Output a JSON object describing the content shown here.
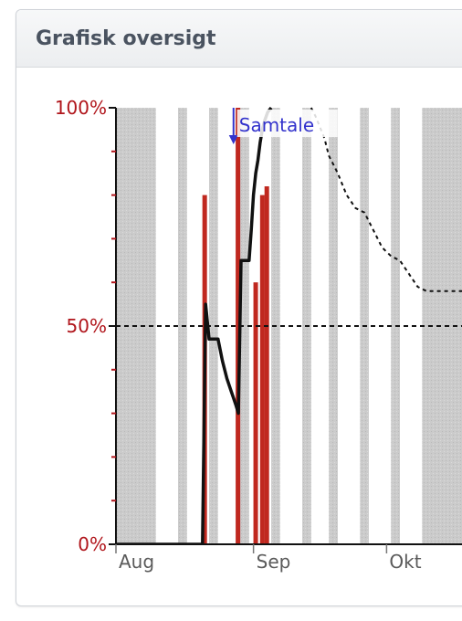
{
  "panel": {
    "title": "Grafisk oversigt"
  },
  "chart_data": {
    "type": "bar",
    "title": "",
    "xlabel": "",
    "ylabel": "",
    "x_unit": "day index from first tick (Aug)",
    "ylim": [
      0,
      100
    ],
    "x_ticks": [
      {
        "label": "Aug",
        "x": 0
      },
      {
        "label": "Sep",
        "x": 31
      },
      {
        "label": "Okt",
        "x": 61
      }
    ],
    "y_ticks": [
      {
        "label": "0%",
        "value": 0
      },
      {
        "label": "50%",
        "value": 50
      },
      {
        "label": "100%",
        "value": 100
      }
    ],
    "xlim": [
      0,
      78
    ],
    "shaded_periods": [
      [
        0,
        9
      ],
      [
        14,
        16
      ],
      [
        21,
        23
      ],
      [
        27,
        30
      ],
      [
        35,
        37
      ],
      [
        42,
        44
      ],
      [
        48,
        50
      ],
      [
        55,
        57
      ],
      [
        62,
        64
      ],
      [
        69,
        78
      ]
    ],
    "bars": [
      {
        "x": 20,
        "value": 80
      },
      {
        "x": 27.5,
        "value": 100
      },
      {
        "x": 31.5,
        "value": 60
      },
      {
        "x": 33,
        "value": 80
      },
      {
        "x": 34,
        "value": 82
      }
    ],
    "series": [
      {
        "style": "solid",
        "x": [
          0,
          19.5,
          20.2,
          21,
          22,
          23,
          24,
          25,
          26,
          27,
          27.6,
          28.2,
          29,
          30,
          30.5,
          31,
          31.5,
          32,
          32.5,
          33,
          33.5,
          34.2,
          35
        ],
        "y": [
          0,
          0,
          55,
          47,
          47,
          47,
          42,
          38,
          35,
          32,
          30,
          65,
          65,
          65,
          72,
          80,
          85,
          88,
          92,
          95,
          97,
          99,
          100
        ]
      },
      {
        "style": "dashed",
        "x": [
          44,
          45,
          47,
          48,
          49,
          50,
          52,
          54,
          56,
          58,
          60,
          62,
          64,
          66,
          68,
          70,
          72,
          75,
          78
        ],
        "y": [
          100,
          98,
          93,
          89,
          87,
          85,
          80,
          77,
          76,
          72,
          68,
          66,
          65,
          62,
          59,
          58,
          58,
          58,
          58
        ]
      }
    ],
    "reference_line": {
      "value": 50,
      "style": "dashed"
    },
    "annotations": [
      {
        "x": 26.5,
        "label": "Samtale"
      }
    ]
  }
}
